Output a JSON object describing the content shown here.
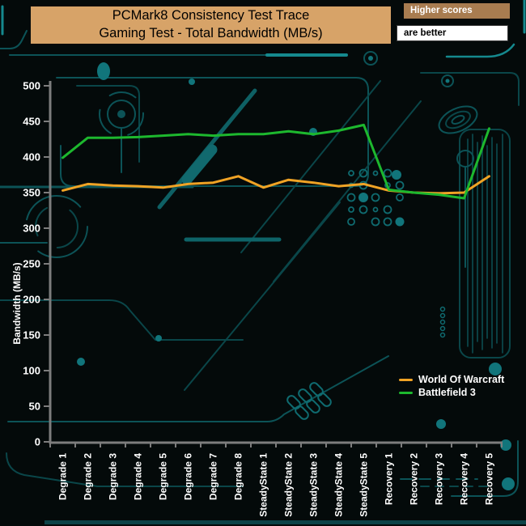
{
  "header": {
    "title_line1": "PCMark8 Consistency Test Trace",
    "title_line2": "Gaming Test - Total Bandwidth (MB/s)",
    "note_top": "Higher scores",
    "note_bottom": "are better"
  },
  "chart_data": {
    "type": "line",
    "title": "PCMark8 Consistency Test Trace — Gaming Test - Total Bandwidth (MB/s)",
    "xlabel": "",
    "ylabel": "Bandwidth (MB/s)",
    "ylim": [
      0,
      500
    ],
    "ytick_step": 50,
    "grid": false,
    "legend_position": "bottom-right",
    "categories": [
      "Degrade 1",
      "Degrade 2",
      "Degrade 3",
      "Degrade 4",
      "Degrade 5",
      "Degrade 6",
      "Degrade 7",
      "Degrade 8",
      "SteadyState 1",
      "SteadyState 2",
      "SteadyState 3",
      "SteadyState 4",
      "SteadyState 5",
      "Recovery 1",
      "Recovery 2",
      "Recovery 3",
      "Recovery 4",
      "Recovery 5"
    ],
    "series": [
      {
        "name": "World Of Warcraft",
        "color": "#f0a325",
        "values": [
          353,
          362,
          360,
          359,
          357,
          362,
          364,
          373,
          357,
          368,
          364,
          359,
          362,
          353,
          350,
          349,
          350,
          373
        ]
      },
      {
        "name": "Battlefield 3",
        "color": "#1db82e",
        "values": [
          399,
          427,
          427,
          428,
          430,
          432,
          430,
          432,
          432,
          436,
          432,
          437,
          445,
          354,
          350,
          347,
          342,
          440
        ]
      }
    ]
  },
  "colors": {
    "title_box_bg": "#d7a368",
    "note_top_bg": "#a87c50",
    "note_bottom_bg": "#ffffff",
    "axis": "#7d7d7d",
    "background": "#040a0a",
    "circuit_trace": "#0c5357"
  }
}
